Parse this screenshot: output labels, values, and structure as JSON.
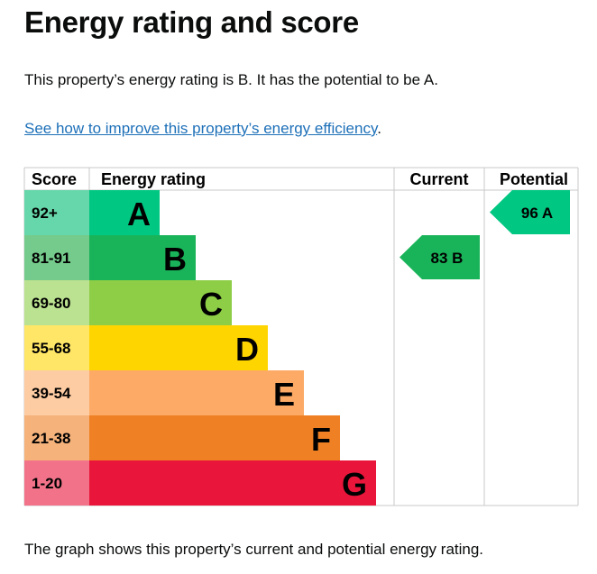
{
  "title": "Energy rating and score",
  "intro": "This property’s energy rating is B. It has the potential to be A.",
  "link": {
    "text": "See how to improve this property’s energy efficiency",
    "suffix": "."
  },
  "footer": "The graph shows this property’s current and potential energy rating.",
  "table": {
    "headers": {
      "score": "Score",
      "rating": "Energy rating",
      "current": "Current",
      "potential": "Potential"
    },
    "bands": [
      {
        "score": "92+",
        "letter": "A",
        "color": "#00c781",
        "light": "#66d7aa"
      },
      {
        "score": "81-91",
        "letter": "B",
        "color": "#19b459",
        "light": "#75cb8c"
      },
      {
        "score": "69-80",
        "letter": "C",
        "color": "#8dce46",
        "light": "#bbe290"
      },
      {
        "score": "55-68",
        "letter": "D",
        "color": "#ffd500",
        "light": "#ffe666"
      },
      {
        "score": "39-54",
        "letter": "E",
        "color": "#fcaa65",
        "light": "#fdcca3"
      },
      {
        "score": "21-38",
        "letter": "F",
        "color": "#ef8023",
        "light": "#f5b27b"
      },
      {
        "score": "1-20",
        "letter": "G",
        "color": "#e9153b",
        "light": "#f27389"
      }
    ],
    "current": {
      "score": "83",
      "letter": "B",
      "band_index": 1,
      "color": "#19b459"
    },
    "potential": {
      "score": "96",
      "letter": "A",
      "band_index": 0,
      "color": "#00c781"
    }
  }
}
